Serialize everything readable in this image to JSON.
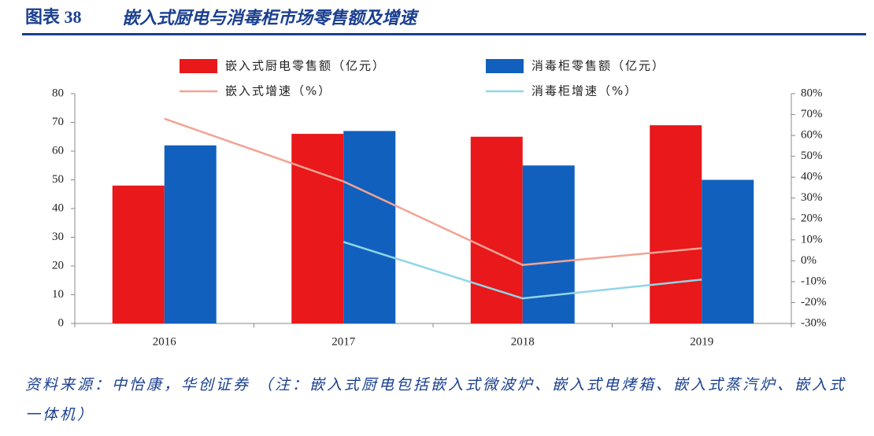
{
  "chart_data": {
    "type": "bar-line",
    "figure_label": "图表 38",
    "title": "嵌入式厨电与消毒柜市场零售额及增速",
    "categories": [
      "2016",
      "2017",
      "2018",
      "2019"
    ],
    "series": [
      {
        "name": "嵌入式厨电零售额（亿元）",
        "type": "bar",
        "color": "#e8181b",
        "values": [
          48,
          66,
          65,
          69
        ]
      },
      {
        "name": "消毒柜零售额（亿元）",
        "type": "bar",
        "color": "#1160bd",
        "values": [
          62,
          67,
          55,
          50
        ]
      },
      {
        "name": "嵌入式增速（%）",
        "type": "line",
        "axis": "y2",
        "color": "#f2a394",
        "values": [
          68,
          38,
          -2,
          6
        ]
      },
      {
        "name": "消毒柜增速（%）",
        "type": "line",
        "axis": "y2",
        "color": "#8fd6e6",
        "values": [
          null,
          9,
          -18,
          -9
        ]
      }
    ],
    "ylim": [
      0,
      80
    ],
    "yticks": [
      0,
      10,
      20,
      30,
      40,
      50,
      60,
      70,
      80
    ],
    "y2lim": [
      -30,
      80
    ],
    "y2ticks": [
      {
        "value": -30,
        "label": "-30%"
      },
      {
        "value": -20,
        "label": "-20%"
      },
      {
        "value": -10,
        "label": "-10%"
      },
      {
        "value": 0,
        "label": "0%"
      },
      {
        "value": 10,
        "label": "10%"
      },
      {
        "value": 20,
        "label": "20%"
      },
      {
        "value": 30,
        "label": "30%"
      },
      {
        "value": 40,
        "label": "40%"
      },
      {
        "value": 50,
        "label": "50%"
      },
      {
        "value": 60,
        "label": "60%"
      },
      {
        "value": 70,
        "label": "70%"
      },
      {
        "value": 80,
        "label": "80%"
      }
    ],
    "source": "资料来源：中怡康，华创证券 （注：嵌入式厨电包括嵌入式微波炉、嵌入式电烤箱、嵌入式蒸汽炉、嵌入式一体机）"
  }
}
